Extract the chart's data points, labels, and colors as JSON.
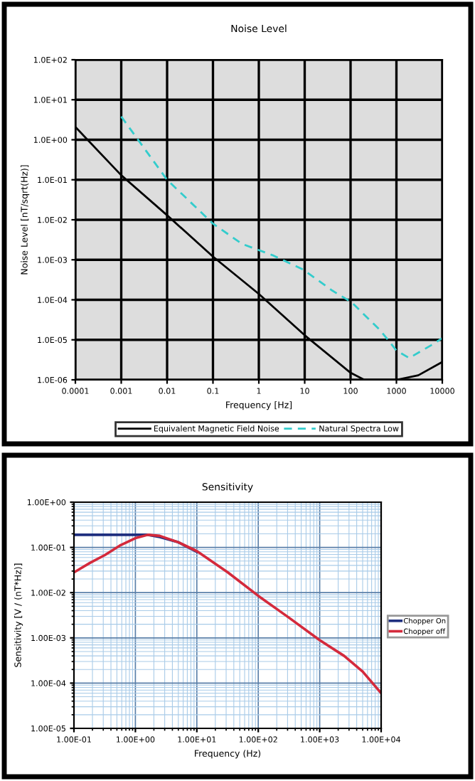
{
  "chart_data": [
    {
      "type": "line",
      "title": "Noise Level",
      "xlabel": "Frequency [Hz]",
      "ylabel": "Noise Level [nT/sqrt(Hz)]",
      "log": "xy",
      "grid": true,
      "legend": "bottom",
      "marker": "none",
      "xlim": [
        0.0001,
        10000
      ],
      "xticks": [
        0.0001,
        0.001,
        0.01,
        0.1,
        1,
        10,
        100,
        1000,
        10000
      ],
      "ylim": [
        1e-06,
        100
      ],
      "yticks": [
        {
          "value": 100,
          "label": "1.0E+02"
        },
        {
          "value": 10,
          "label": "1.0E+01"
        },
        {
          "value": 1,
          "label": "1.0E+00"
        },
        {
          "value": 0.1,
          "label": "1.0E-01"
        },
        {
          "value": 0.01,
          "label": "1.0E-02"
        },
        {
          "value": 0.001,
          "label": "1.0E-03"
        },
        {
          "value": 0.0001,
          "label": "1.0E-04"
        },
        {
          "value": 1e-05,
          "label": "1.0E-05"
        },
        {
          "value": 1e-06,
          "label": "1.0E-06"
        }
      ],
      "series": [
        {
          "name": "Equivalent Magnetic Field Noise",
          "color": "#000000",
          "line_style": "solid",
          "x": [
            0.0001,
            0.001,
            0.01,
            0.1,
            1,
            10,
            100,
            200,
            1000,
            3000,
            10000
          ],
          "values": [
            2.1,
            0.13,
            0.013,
            0.0012,
            0.00014,
            1.3e-05,
            1.5e-06,
            1e-06,
            1e-06,
            1.3e-06,
            2.8e-06
          ]
        },
        {
          "name": "Natural Spectra Low",
          "color": "#33cccc",
          "line_style": "dashed",
          "x": [
            0.001,
            0.01,
            0.1,
            0.43,
            2.0,
            9.5,
            40,
            105,
            450,
            1000,
            1900,
            5800,
            10000
          ],
          "values": [
            3.8,
            0.1,
            0.008,
            0.0025,
            0.0013,
            0.00056,
            0.00017,
            8.7e-05,
            1.7e-05,
            5.4e-06,
            3.5e-06,
            7.4e-06,
            1.1e-05
          ]
        }
      ]
    },
    {
      "type": "line",
      "title": "Sensitivity",
      "xlabel": "Frequency (Hz)",
      "ylabel": "Sensitivity [V / (nT*Hz)]",
      "log": "xy",
      "grid": true,
      "legend": "right",
      "marker": "none",
      "xlim": [
        0.1,
        10000
      ],
      "xticks": [
        {
          "value": 0.1,
          "label": "1.00E-01"
        },
        {
          "value": 1,
          "label": "1.00E+00"
        },
        {
          "value": 10,
          "label": "1.00E+01"
        },
        {
          "value": 100,
          "label": "1.00E+02"
        },
        {
          "value": 1000,
          "label": "1.00E+03"
        },
        {
          "value": 10000,
          "label": "1.00E+04"
        }
      ],
      "ylim": [
        1e-05,
        1
      ],
      "yticks": [
        {
          "value": 1,
          "label": "1.00E+00"
        },
        {
          "value": 0.1,
          "label": "1.00E-01"
        },
        {
          "value": 0.01,
          "label": "1.00E-02"
        },
        {
          "value": 0.001,
          "label": "1.00E-03"
        },
        {
          "value": 0.0001,
          "label": "1.00E-04"
        },
        {
          "value": 1e-05,
          "label": "1.00E-05"
        }
      ],
      "series": [
        {
          "name": "Chopper On",
          "color": "#1f2f7f",
          "line_style": "solid",
          "x": [
            0.1,
            0.32,
            1,
            1.6,
            2.5,
            5,
            10
          ],
          "values": [
            0.19,
            0.19,
            0.19,
            0.19,
            0.17,
            0.13,
            0.08
          ]
        },
        {
          "name": "Chopper off",
          "color": "#d42a3c",
          "line_style": "solid",
          "x": [
            0.1,
            0.18,
            0.32,
            0.56,
            1,
            1.6,
            2.5,
            5,
            10,
            32,
            100,
            316,
            1000,
            2500,
            5000,
            10000
          ],
          "values": [
            0.028,
            0.045,
            0.068,
            0.11,
            0.16,
            0.19,
            0.18,
            0.13,
            0.083,
            0.028,
            0.0085,
            0.0028,
            0.00089,
            0.0004,
            0.00018,
            6e-05
          ]
        }
      ]
    }
  ]
}
